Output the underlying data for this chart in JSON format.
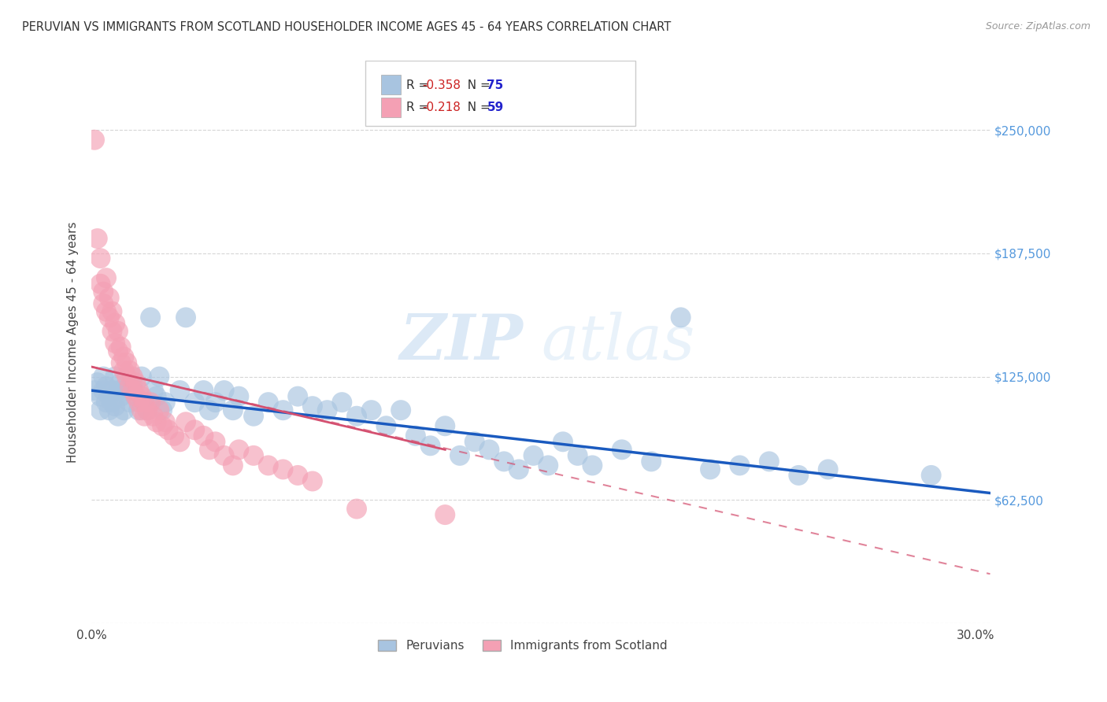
{
  "title": "PERUVIAN VS IMMIGRANTS FROM SCOTLAND HOUSEHOLDER INCOME AGES 45 - 64 YEARS CORRELATION CHART",
  "source": "Source: ZipAtlas.com",
  "ylabel": "Householder Income Ages 45 - 64 years",
  "xlim": [
    0.0,
    0.305
  ],
  "ylim": [
    0,
    285000
  ],
  "yticks": [
    0,
    62500,
    125000,
    187500,
    250000
  ],
  "xticks": [
    0.0,
    0.05,
    0.1,
    0.15,
    0.2,
    0.25,
    0.3
  ],
  "xtick_labels": [
    "0.0%",
    "",
    "",
    "",
    "",
    "",
    "30.0%"
  ],
  "legend_blue_r": "R = -0.358",
  "legend_blue_n": "N = 75",
  "legend_pink_r": "R = -0.218",
  "legend_pink_n": "N = 59",
  "blue_color": "#a8c4e0",
  "pink_color": "#f4a0b4",
  "blue_line_color": "#1a5abf",
  "pink_line_color": "#d45070",
  "r_value_color": "#cc0000",
  "n_value_color": "#0000cc",
  "watermark_zip": "ZIP",
  "watermark_atlas": "atlas",
  "watermark_color": "#c8dff0",
  "blue_scatter": [
    [
      0.001,
      118000
    ],
    [
      0.002,
      122000
    ],
    [
      0.003,
      115000
    ],
    [
      0.003,
      108000
    ],
    [
      0.004,
      125000
    ],
    [
      0.004,
      118000
    ],
    [
      0.005,
      112000
    ],
    [
      0.005,
      120000
    ],
    [
      0.006,
      115000
    ],
    [
      0.006,
      108000
    ],
    [
      0.007,
      118000
    ],
    [
      0.007,
      112000
    ],
    [
      0.008,
      125000
    ],
    [
      0.008,
      110000
    ],
    [
      0.009,
      118000
    ],
    [
      0.009,
      105000
    ],
    [
      0.01,
      122000
    ],
    [
      0.01,
      115000
    ],
    [
      0.011,
      108000
    ],
    [
      0.012,
      118000
    ],
    [
      0.013,
      112000
    ],
    [
      0.014,
      120000
    ],
    [
      0.015,
      115000
    ],
    [
      0.016,
      108000
    ],
    [
      0.017,
      125000
    ],
    [
      0.018,
      112000
    ],
    [
      0.019,
      108000
    ],
    [
      0.02,
      155000
    ],
    [
      0.021,
      118000
    ],
    [
      0.022,
      115000
    ],
    [
      0.023,
      125000
    ],
    [
      0.024,
      108000
    ],
    [
      0.025,
      112000
    ],
    [
      0.03,
      118000
    ],
    [
      0.032,
      155000
    ],
    [
      0.035,
      112000
    ],
    [
      0.038,
      118000
    ],
    [
      0.04,
      108000
    ],
    [
      0.042,
      112000
    ],
    [
      0.045,
      118000
    ],
    [
      0.048,
      108000
    ],
    [
      0.05,
      115000
    ],
    [
      0.055,
      105000
    ],
    [
      0.06,
      112000
    ],
    [
      0.065,
      108000
    ],
    [
      0.07,
      115000
    ],
    [
      0.075,
      110000
    ],
    [
      0.08,
      108000
    ],
    [
      0.085,
      112000
    ],
    [
      0.09,
      105000
    ],
    [
      0.095,
      108000
    ],
    [
      0.1,
      100000
    ],
    [
      0.105,
      108000
    ],
    [
      0.11,
      95000
    ],
    [
      0.115,
      90000
    ],
    [
      0.12,
      100000
    ],
    [
      0.125,
      85000
    ],
    [
      0.13,
      92000
    ],
    [
      0.135,
      88000
    ],
    [
      0.14,
      82000
    ],
    [
      0.145,
      78000
    ],
    [
      0.15,
      85000
    ],
    [
      0.155,
      80000
    ],
    [
      0.16,
      92000
    ],
    [
      0.165,
      85000
    ],
    [
      0.17,
      80000
    ],
    [
      0.18,
      88000
    ],
    [
      0.19,
      82000
    ],
    [
      0.2,
      155000
    ],
    [
      0.21,
      78000
    ],
    [
      0.22,
      80000
    ],
    [
      0.23,
      82000
    ],
    [
      0.24,
      75000
    ],
    [
      0.25,
      78000
    ],
    [
      0.285,
      75000
    ]
  ],
  "pink_scatter": [
    [
      0.001,
      245000
    ],
    [
      0.002,
      195000
    ],
    [
      0.003,
      185000
    ],
    [
      0.003,
      172000
    ],
    [
      0.004,
      168000
    ],
    [
      0.004,
      162000
    ],
    [
      0.005,
      175000
    ],
    [
      0.005,
      158000
    ],
    [
      0.006,
      165000
    ],
    [
      0.006,
      155000
    ],
    [
      0.007,
      158000
    ],
    [
      0.007,
      148000
    ],
    [
      0.008,
      152000
    ],
    [
      0.008,
      142000
    ],
    [
      0.009,
      148000
    ],
    [
      0.009,
      138000
    ],
    [
      0.01,
      140000
    ],
    [
      0.01,
      132000
    ],
    [
      0.011,
      135000
    ],
    [
      0.011,
      128000
    ],
    [
      0.012,
      132000
    ],
    [
      0.012,
      125000
    ],
    [
      0.013,
      128000
    ],
    [
      0.013,
      120000
    ],
    [
      0.014,
      125000
    ],
    [
      0.014,
      118000
    ],
    [
      0.015,
      122000
    ],
    [
      0.015,
      115000
    ],
    [
      0.016,
      118000
    ],
    [
      0.016,
      112000
    ],
    [
      0.017,
      115000
    ],
    [
      0.017,
      108000
    ],
    [
      0.018,
      112000
    ],
    [
      0.018,
      105000
    ],
    [
      0.019,
      108000
    ],
    [
      0.02,
      112000
    ],
    [
      0.021,
      105000
    ],
    [
      0.022,
      102000
    ],
    [
      0.023,
      108000
    ],
    [
      0.024,
      100000
    ],
    [
      0.025,
      102000
    ],
    [
      0.026,
      98000
    ],
    [
      0.028,
      95000
    ],
    [
      0.03,
      92000
    ],
    [
      0.032,
      102000
    ],
    [
      0.035,
      98000
    ],
    [
      0.038,
      95000
    ],
    [
      0.04,
      88000
    ],
    [
      0.042,
      92000
    ],
    [
      0.045,
      85000
    ],
    [
      0.048,
      80000
    ],
    [
      0.05,
      88000
    ],
    [
      0.055,
      85000
    ],
    [
      0.06,
      80000
    ],
    [
      0.065,
      78000
    ],
    [
      0.07,
      75000
    ],
    [
      0.075,
      72000
    ],
    [
      0.09,
      58000
    ],
    [
      0.12,
      55000
    ]
  ]
}
